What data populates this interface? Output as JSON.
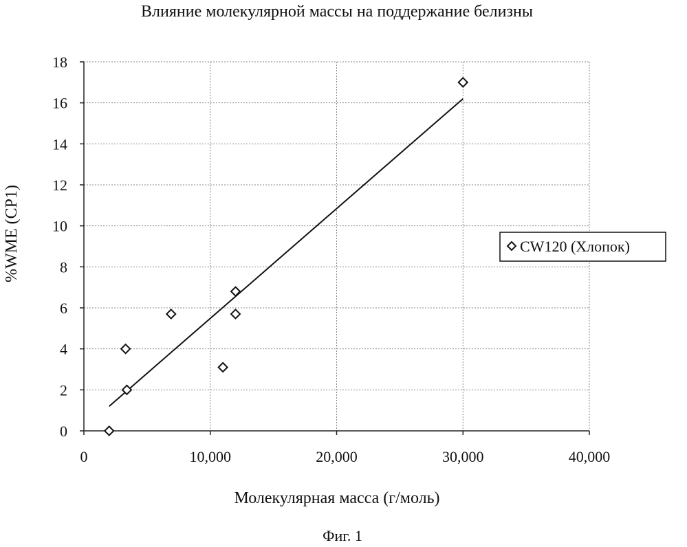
{
  "chart_data": {
    "type": "scatter",
    "title": "Влияние молекулярной массы на поддержание белизны",
    "xlabel": "Молекулярная масса (г/моль)",
    "ylabel": "%WME (CP1)",
    "xlim": [
      0,
      40000
    ],
    "ylim": [
      0,
      18
    ],
    "x_ticks": [
      0,
      10000,
      20000,
      30000,
      40000
    ],
    "x_tick_labels": [
      "0",
      "10,000",
      "20,000",
      "30,000",
      "40,000"
    ],
    "y_ticks": [
      0,
      2,
      4,
      6,
      8,
      10,
      12,
      14,
      16,
      18
    ],
    "y_tick_labels": [
      "0",
      "2",
      "4",
      "6",
      "8",
      "10",
      "12",
      "14",
      "16",
      "18"
    ],
    "grid": true,
    "legend_position": "right",
    "series": [
      {
        "name": "CW120 (Хлопок)",
        "marker": "diamond",
        "points": [
          {
            "x": 2000,
            "y": 0
          },
          {
            "x": 3300,
            "y": 4
          },
          {
            "x": 3400,
            "y": 2
          },
          {
            "x": 6900,
            "y": 5.7
          },
          {
            "x": 11000,
            "y": 3.1
          },
          {
            "x": 12000,
            "y": 6.8
          },
          {
            "x": 12000,
            "y": 5.7
          },
          {
            "x": 30000,
            "y": 17
          }
        ]
      }
    ],
    "trendline": {
      "type": "linear",
      "x": [
        2000,
        30000
      ],
      "y": [
        1.2,
        16.2
      ]
    }
  },
  "figure": {
    "caption": "Фиг. 1"
  },
  "colors": {
    "axis": "#222222",
    "grid": "#888888",
    "marker": "#111111",
    "trendline": "#111111"
  }
}
